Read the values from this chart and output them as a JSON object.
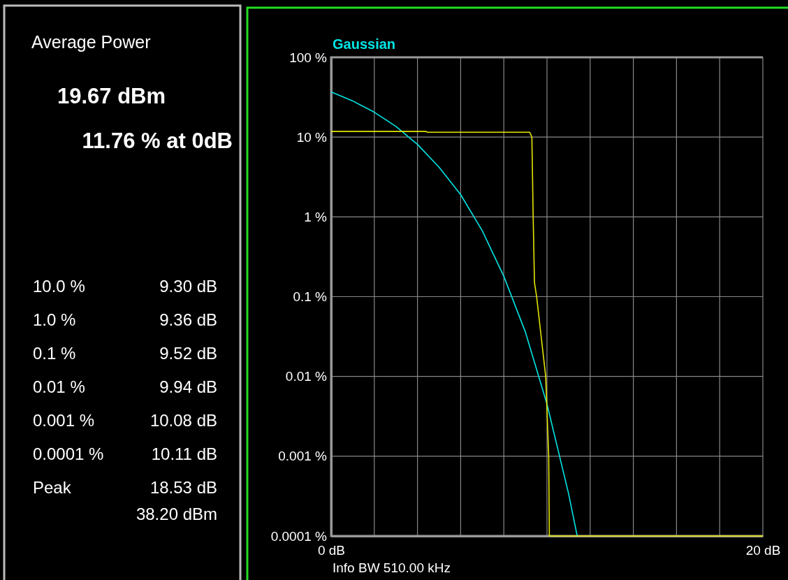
{
  "chart_data": [
    {
      "type": "other",
      "title": "Average Power",
      "annotations": [
        "19.67 dBm",
        "11.76 % at 0dB",
        "10.0 %",
        "9.30 dB",
        "1.0 %",
        "9.36 dB",
        "0.1 %",
        "9.52 dB",
        "0.01 %",
        "9.94 dB",
        "0.001 %",
        "10.08 dB",
        "0.0001 %",
        "10.11 dB",
        "Peak",
        "18.53 dB",
        "38.20 dBm"
      ]
    },
    {
      "type": "line",
      "log": "y",
      "grid": true,
      "legend": "top left",
      "annotations": [
        "Info BW 510.00 kHz"
      ],
      "xlim": [
        0,
        20
      ],
      "xticks": [
        {
          "value": 0,
          "label": "0 dB"
        },
        {
          "value": 2,
          "label": null
        },
        {
          "value": 4,
          "label": null
        },
        {
          "value": 6,
          "label": null
        },
        {
          "value": 8,
          "label": null
        },
        {
          "value": 10,
          "label": null
        },
        {
          "value": 12,
          "label": null
        },
        {
          "value": 14,
          "label": null
        },
        {
          "value": 16,
          "label": null
        },
        {
          "value": 18,
          "label": null
        },
        {
          "value": 20,
          "label": "20 dB"
        }
      ],
      "ylim": [
        0.0001,
        100
      ],
      "yticks": [
        {
          "value": 100,
          "label": "100 %"
        },
        {
          "value": 10,
          "label": "10 %"
        },
        {
          "value": 1,
          "label": "1 %"
        },
        {
          "value": 0.1,
          "label": "0.1 %"
        },
        {
          "value": 0.01,
          "label": "0.01 %"
        },
        {
          "value": 0.001,
          "label": "0.001 %"
        },
        {
          "value": 0.0001,
          "label": "0.0001 %"
        }
      ],
      "series": [
        {
          "name": "Gaussian",
          "color": "#00e5e5",
          "x": [
            0,
            1,
            2,
            3,
            4,
            5,
            6,
            7,
            8,
            9,
            10,
            11,
            11.4
          ],
          "values": [
            36.8,
            28.4,
            20.5,
            13.6,
            8.1,
            4.2,
            1.9,
            0.67,
            0.18,
            0.036,
            0.0045,
            0.00034,
            0.0001
          ]
        },
        {
          "color": "#e5e500",
          "x": [
            0,
            4.4,
            4.45,
            9.2,
            9.3,
            9.36,
            9.42,
            9.52,
            9.94,
            10.08,
            10.11,
            20
          ],
          "values": [
            11.76,
            11.76,
            11.5,
            11.5,
            10,
            1,
            0.15,
            0.1,
            0.01,
            0.001,
            0.0001,
            0.0001
          ]
        }
      ]
    }
  ]
}
